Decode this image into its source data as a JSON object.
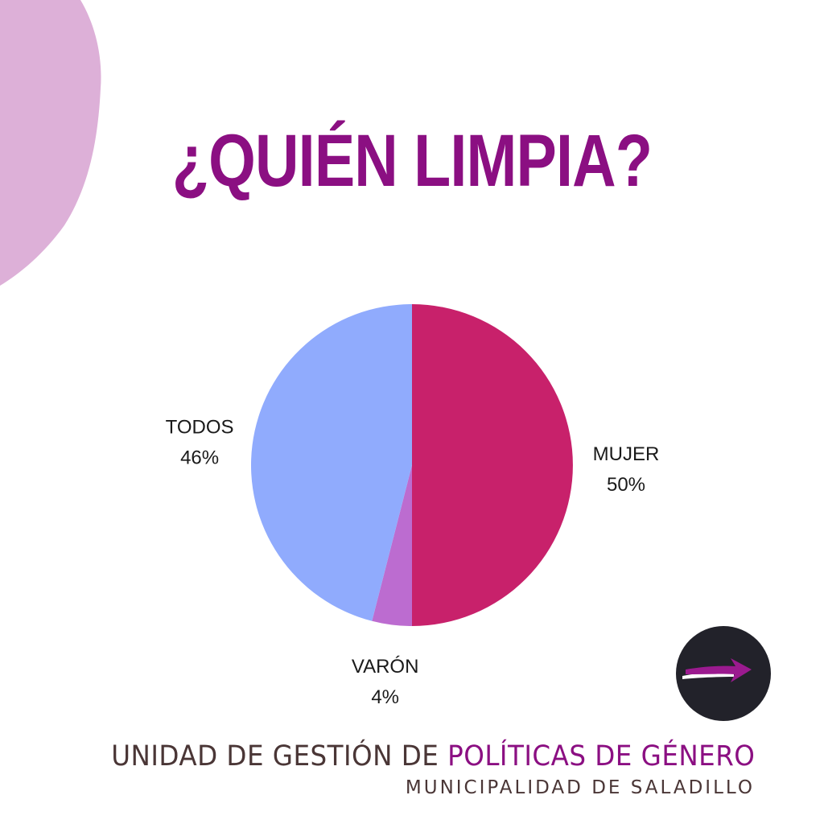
{
  "colors": {
    "title": "#8b0f82",
    "blob": "#ddb0d8",
    "footer_dark": "#4a3636",
    "footer_accent": "#8b0f82",
    "badge_bg": "#22222a",
    "badge_arrow": "#9b1a8f",
    "badge_arrow_light": "#ffffff"
  },
  "title": "¿QUIÉN LIMPIA?",
  "chart_data": {
    "type": "pie",
    "title": "¿QUIÉN LIMPIA?",
    "slices": [
      {
        "label": "MUJER",
        "percent_label": "50%",
        "value": 50,
        "color": "#c8216b"
      },
      {
        "label": "VARÓN",
        "percent_label": "4%",
        "value": 4,
        "color": "#bc6cd0"
      },
      {
        "label": "TODOS",
        "percent_label": "46%",
        "value": 46,
        "color": "#90abfd"
      }
    ],
    "start": "12 o'clock, clockwise",
    "legend": "none"
  },
  "badge": {
    "icon": "arrow-icon"
  },
  "footer": {
    "line1_part1": "UNIDAD DE GESTIÓN DE ",
    "line1_part2": "POLÍTICAS DE GÉNERO",
    "line2": "MUNICIPALIDAD DE SALADILLO"
  }
}
